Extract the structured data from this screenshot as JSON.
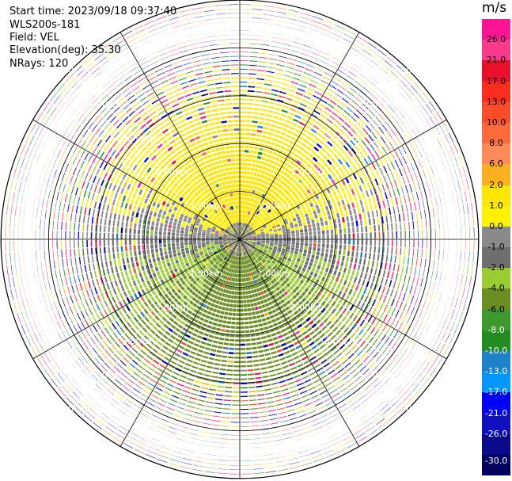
{
  "header": {
    "start_time": "Start time: 2023/09/18 09:37:40",
    "instrument": "WLS200s-181",
    "field": "Field: VEL",
    "elevation": "Elevation(deg): 35.30",
    "nrays": "NRays: 120"
  },
  "chart_data": {
    "type": "heatmap",
    "projection": "polar-ppi",
    "field": "VEL",
    "units": "m/s",
    "nrays": 120,
    "elevation_deg": 35.3,
    "range_rings_km": [
      1.0,
      2.0,
      3.0,
      4.0,
      5.0
    ],
    "range_ring_labels": [
      "1.00km",
      "2.00km",
      "3.00km",
      "4.00km",
      "5.00km"
    ],
    "max_range_km": 5.0,
    "colorbar": {
      "title": "m/s",
      "ticks": [
        "26.0",
        "21.0",
        "17.0",
        "13.0",
        "10.0",
        "8.0",
        "6.0",
        "2.0",
        "1.0",
        "0.0",
        "-1.0",
        "-2.0",
        "-4.0",
        "-6.0",
        "-8.0",
        "-10.0",
        "-13.0",
        "-17.0",
        "-21.0",
        "-26.0",
        "-30.0"
      ],
      "colors": [
        "#ff1493",
        "#ff3a8c",
        "#e8102a",
        "#ff2d1e",
        "#ff4d2a",
        "#ff6a3c",
        "#ff8a5a",
        "#ffb020",
        "#ffe600",
        "#fff200",
        "#8a8a8a",
        "#6e6e6e",
        "#9acd32",
        "#6b8e23",
        "#3c9a2e",
        "#228b22",
        "#1e82c8",
        "#0096ff",
        "#0000ff",
        "#1010c0",
        "#0a0a8a",
        "#000060"
      ]
    }
  },
  "colors": {
    "ring_line": "#000000",
    "label": "#ffffff",
    "background": "#ffffff"
  }
}
